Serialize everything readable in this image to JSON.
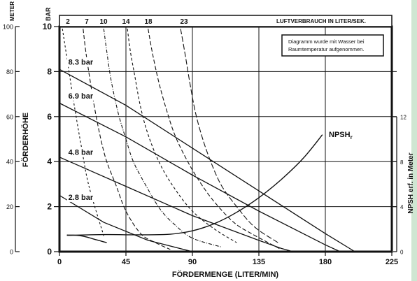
{
  "chart_data": {
    "type": "line",
    "title": "",
    "note_lines": [
      "Diagramm wurde mit Wasser bei",
      "Raumtemperatur aufgenommen."
    ],
    "xlabel": "FÖRDERMENGE (LITER/MIN)",
    "xlim": [
      0,
      225
    ],
    "x_ticks": [
      "0",
      "45",
      "90",
      "135",
      "180",
      "225"
    ],
    "ylabel_left": "FÖRDERHÖHE",
    "ylabel_right": "NPSH erf. in Meter",
    "unit_meter": "METER",
    "unit_bar": "BAR",
    "ylim_bar": [
      0,
      10
    ],
    "ylim_meter": [
      0,
      100
    ],
    "ylim_npsh": [
      0,
      12
    ],
    "y_ticks_bar": [
      "0",
      "2",
      "4",
      "6",
      "8",
      "10"
    ],
    "y_ticks_meter": [
      "0",
      "20",
      "40",
      "60",
      "80",
      "100"
    ],
    "y_ticks_npsh": [
      "0",
      "4",
      "8",
      "12"
    ],
    "air_label": "LUFTVERBRAUCH IN LITER/SEK.",
    "air_values": [
      "2",
      "7",
      "10",
      "14",
      "18",
      "23"
    ],
    "npsh_label": "NPSH",
    "npsh_sub": "r",
    "series": [
      {
        "name": "8.3 bar",
        "label_at": [
          6,
          8.3
        ],
        "x": [
          0,
          45,
          90,
          135,
          180,
          200
        ],
        "y": [
          8.1,
          6.5,
          4.6,
          2.7,
          0.8,
          0
        ]
      },
      {
        "name": "6.9 bar",
        "label_at": [
          6,
          6.8
        ],
        "x": [
          0,
          45,
          90,
          135,
          180,
          190
        ],
        "y": [
          6.6,
          5.1,
          3.4,
          1.8,
          0.3,
          0
        ]
      },
      {
        "name": "4.8 bar",
        "label_at": [
          6,
          4.3
        ],
        "x": [
          0,
          45,
          90,
          135,
          150,
          158
        ],
        "y": [
          4.2,
          2.9,
          1.6,
          0.5,
          0.15,
          0
        ]
      },
      {
        "name": "2.8 bar",
        "label_at": [
          6,
          2.3
        ],
        "x": [
          0,
          30,
          60,
          90
        ],
        "y": [
          2.5,
          1.3,
          0.5,
          0
        ]
      }
    ],
    "npsh_curve": {
      "x": [
        5,
        30,
        45,
        60,
        75,
        90,
        105,
        120,
        135,
        150,
        165,
        178
      ],
      "y": [
        1.45,
        1.52,
        1.5,
        1.5,
        1.55,
        1.85,
        2.5,
        3.5,
        4.8,
        6.4,
        8.3,
        10.4
      ]
    },
    "npsh_branch": {
      "x": [
        5,
        15,
        25,
        32
      ],
      "y": [
        1.48,
        1.4,
        1.05,
        0.8
      ]
    },
    "air_curves": [
      {
        "value": "2",
        "x": [
          2,
          6,
          10,
          15,
          20,
          30
        ],
        "y": [
          9.9,
          8.2,
          6.5,
          4.6,
          2.9,
          0.7
        ]
      },
      {
        "value": "7",
        "x": [
          16,
          18,
          21,
          24,
          28,
          32,
          38,
          45,
          55,
          65,
          75
        ],
        "y": [
          9.9,
          8.8,
          7.5,
          6.3,
          5.0,
          4.0,
          3.0,
          1.8,
          0.8,
          0.4,
          0.1
        ]
      },
      {
        "value": "10",
        "x": [
          30,
          32,
          35,
          40,
          45,
          50,
          58,
          68,
          78,
          90,
          110
        ],
        "y": [
          9.9,
          8.9,
          7.6,
          6.1,
          5.0,
          4.0,
          3.0,
          1.9,
          1.2,
          0.6,
          0.2
        ]
      },
      {
        "value": "14",
        "x": [
          46,
          48,
          51,
          55,
          60,
          68,
          78,
          90,
          105,
          120
        ],
        "y": [
          9.9,
          8.9,
          7.8,
          6.4,
          5.2,
          3.9,
          2.8,
          1.8,
          1.0,
          0.4
        ]
      },
      {
        "value": "18",
        "x": [
          60,
          63,
          67,
          72,
          78,
          86,
          95,
          105,
          118,
          130,
          150
        ],
        "y": [
          9.9,
          8.8,
          7.6,
          6.4,
          5.2,
          4.1,
          3.1,
          2.2,
          1.3,
          0.8,
          0.1
        ]
      },
      {
        "value": "23",
        "x": [
          82,
          85,
          88,
          92,
          97,
          103,
          110,
          120,
          132,
          148
        ],
        "y": [
          9.9,
          8.8,
          7.6,
          6.2,
          5.0,
          3.9,
          2.9,
          2.0,
          1.1,
          0.4
        ]
      }
    ],
    "grid": true
  }
}
